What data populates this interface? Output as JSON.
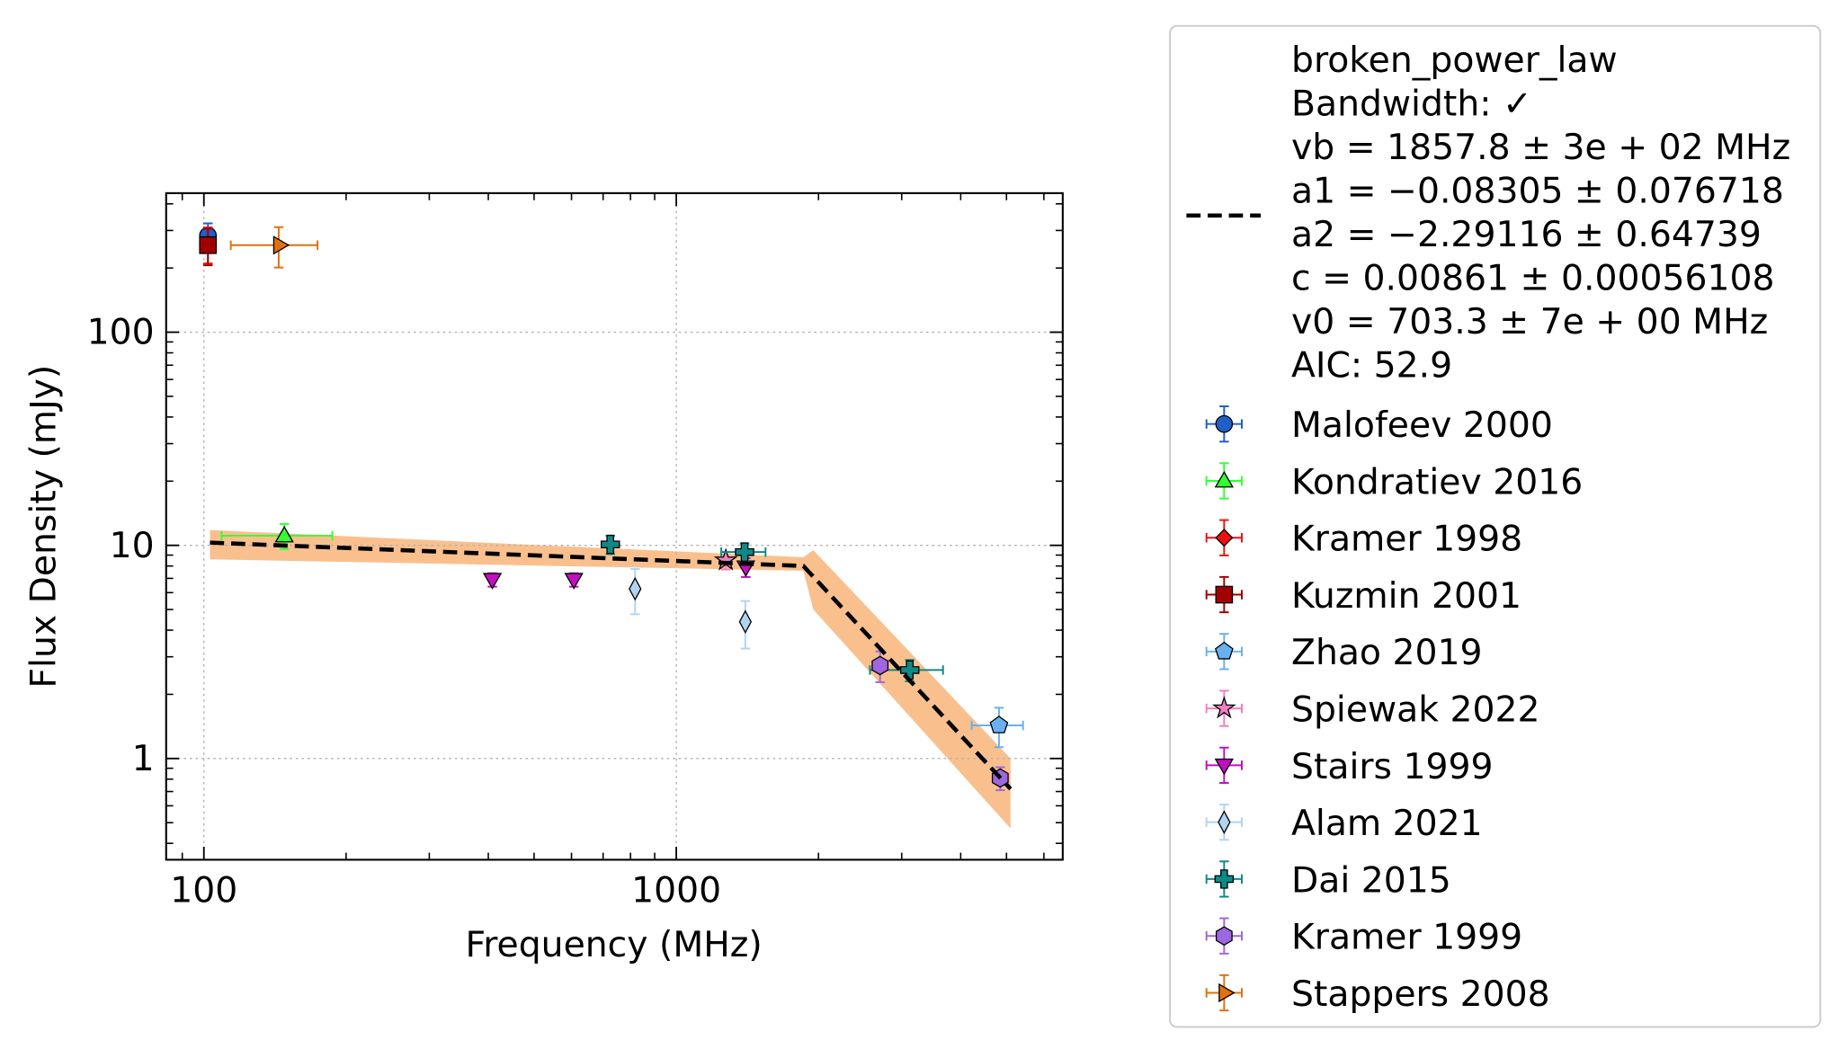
{
  "chart_data": {
    "type": "scatter",
    "x_label": "Frequency (MHz)",
    "y_label": "Flux Density (mJy)",
    "xscale": "log",
    "yscale": "log",
    "xlim": [
      83.2,
      6577
    ],
    "ylim": [
      0.335,
      449
    ],
    "xticks": [
      100,
      1000
    ],
    "yticks": [
      1,
      10,
      100
    ],
    "grid": true,
    "legend": "outside right",
    "fit": {
      "name": "broken_power_law",
      "label_lines": [
        "broken_power_law",
        "Bandwidth: ✓",
        "vb = 1857.8 ± 3e + 02 MHz",
        "a1 = −0.08305 ± 0.076718",
        "a2 = −2.29116 ± 0.64739",
        "c = 0.00861 ± 0.00056108",
        "v0 = 703.3 ± 7e + 00 MHz",
        "AIC: 52.9"
      ],
      "color": "#000000",
      "band_color": "#f9c08e",
      "x": [
        103,
        1857.8,
        5100
      ],
      "values": [
        10.3,
        8.0,
        0.72
      ],
      "band_x": [
        103,
        1857.8,
        1950,
        5100
      ],
      "band_upper": [
        11.8,
        8.8,
        9.5,
        1.0
      ],
      "band_lower": [
        8.6,
        7.6,
        5.0,
        0.47
      ]
    },
    "series": [
      {
        "name": "Malofeev 2000",
        "color": "#1f5fc8",
        "marker": "o",
        "x": [
          102
        ],
        "values": [
          284
        ],
        "yerr": [
          40
        ]
      },
      {
        "name": "Kondratiev 2016",
        "color": "#33ff33",
        "marker": "^",
        "x": [
          148
        ],
        "values": [
          11.1
        ],
        "yerr": [
          1.5
        ],
        "xerr": [
          39
        ]
      },
      {
        "name": "Kramer 1998",
        "color": "#ee1111",
        "marker": "D",
        "x": [
          102
        ],
        "values": [
          260
        ],
        "yerr": [
          50
        ]
      },
      {
        "name": "Kuzmin 2001",
        "color": "#a00000",
        "marker": "s",
        "x": [
          102
        ],
        "values": [
          256
        ],
        "yerr": [
          50
        ]
      },
      {
        "name": "Zhao 2019",
        "color": "#6ab0f0",
        "marker": "p",
        "x": [
          4820
        ],
        "values": [
          1.43
        ],
        "yerr": [
          0.3
        ],
        "xerr": [
          600
        ]
      },
      {
        "name": "Spiewak 2022",
        "color": "#f080c0",
        "marker": "*",
        "x": [
          1273
        ],
        "values": [
          8.5
        ],
        "yerr": [
          0.8
        ]
      },
      {
        "name": "Stairs 1999",
        "color": "#c010c0",
        "marker": "v",
        "x": [
          408,
          607,
          1403
        ],
        "values": [
          6.9,
          6.9,
          7.9
        ],
        "yerr": [
          0.5,
          0.5,
          0.8
        ]
      },
      {
        "name": "Alam 2021",
        "color": "#b0d4f0",
        "marker": "d",
        "x": [
          818,
          1400
        ],
        "values": [
          6.25,
          4.38
        ],
        "yerr": [
          1.5,
          1.1
        ]
      },
      {
        "name": "Dai 2015",
        "color": "#108888",
        "marker": "P",
        "x": [
          725,
          1395,
          3120
        ],
        "values": [
          10.1,
          9.3,
          2.6
        ],
        "yerr": [
          1.0,
          0.9,
          0.3
        ],
        "xerr": [
          null,
          150,
          550
        ]
      },
      {
        "name": "Kramer 1999",
        "color": "#a066e0",
        "marker": "h",
        "x": [
          2700,
          4850
        ],
        "values": [
          2.73,
          0.81
        ],
        "yerr": [
          0.45,
          0.1
        ]
      },
      {
        "name": "Stappers 2008",
        "color": "#e07010",
        "marker": ">",
        "x": [
          144
        ],
        "values": [
          256
        ],
        "yerr": [
          55
        ],
        "xerr": [
          30
        ]
      }
    ]
  }
}
